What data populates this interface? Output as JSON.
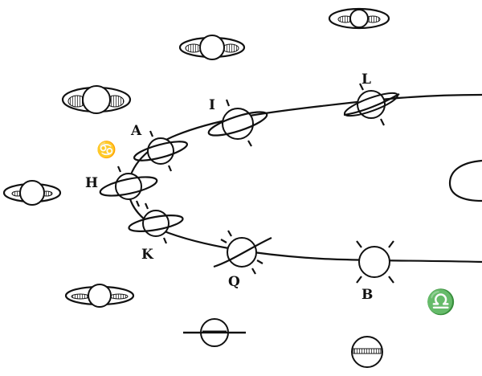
{
  "figure": {
    "orbit_labels": [
      "L",
      "I",
      "A",
      "H",
      "K",
      "Q",
      "B"
    ],
    "zodiac_signs": {
      "cancer": "♋",
      "libra": "♎"
    },
    "ink_color": "#111111",
    "paper_color": "#ffffff"
  }
}
